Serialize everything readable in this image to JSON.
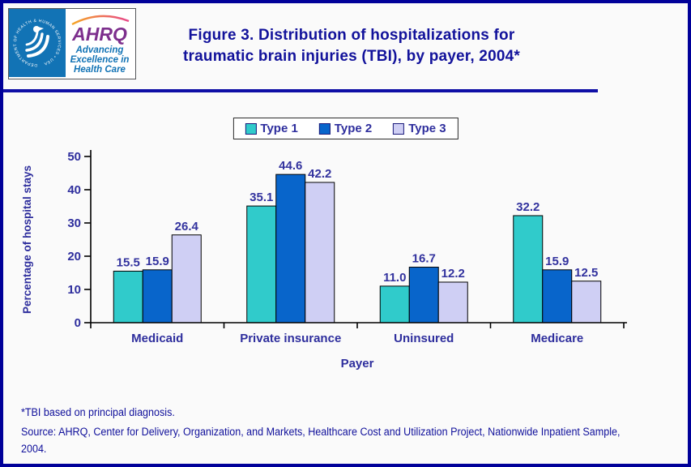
{
  "header": {
    "logo": {
      "seal_text": "DEPARTMENT OF HEALTH & HUMAN SERVICES • USA",
      "acronym": "AHRQ",
      "tagline_lines": [
        "Advancing",
        "Excellence in",
        "Health Care"
      ]
    },
    "title_lines": [
      "Figure 3. Distribution of hospitalizations for",
      "traumatic brain injuries (TBI), by payer, 2004*"
    ]
  },
  "chart_data": {
    "type": "bar",
    "title": "Figure 3. Distribution of hospitalizations for traumatic brain injuries (TBI), by payer, 2004*",
    "categories": [
      "Medicaid",
      "Private insurance",
      "Uninsured",
      "Medicare"
    ],
    "series": [
      {
        "name": "Type 1",
        "color": "#30cbcb",
        "values": [
          15.5,
          35.1,
          11.0,
          32.2
        ]
      },
      {
        "name": "Type 2",
        "color": "#0865cb",
        "values": [
          15.9,
          44.6,
          16.7,
          15.9
        ]
      },
      {
        "name": "Type 3",
        "color": "#cfcff4",
        "values": [
          26.4,
          42.2,
          12.2,
          12.5
        ]
      }
    ],
    "xlabel": "Payer",
    "ylabel": "Percentage of hospital stays",
    "ylim": [
      0,
      50
    ],
    "yticks": [
      0,
      10,
      20,
      30,
      40,
      50
    ],
    "grid": false,
    "legend_position": "top",
    "value_labels": true,
    "text_color": "#2e2e9d",
    "value_label_color": "#32329e",
    "axis_color": "#000000"
  },
  "footnotes": {
    "line1": "*TBI based on principal diagnosis.",
    "line2": "Source: AHRQ, Center for Delivery, Organization, and Markets, Healthcare Cost and Utilization Project, Nationwide Inpatient Sample, 2004."
  },
  "colors": {
    "page_background": "#fafafa",
    "frame_border": "#000099",
    "title_text": "#12129b",
    "footnote_text": "#10109b",
    "hhs_blue": "#1273b5",
    "ahrq_purple": "#7d2f8d"
  }
}
